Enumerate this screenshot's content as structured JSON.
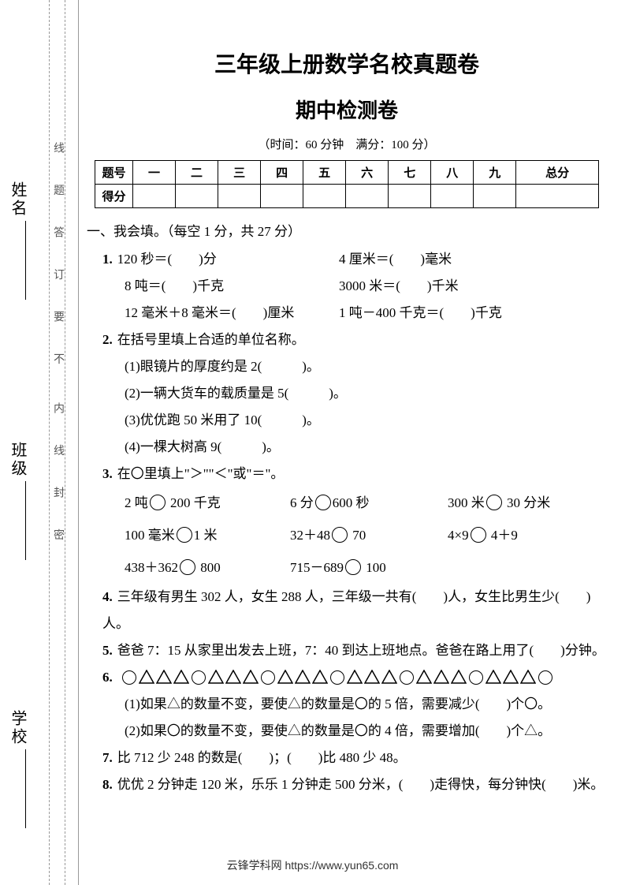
{
  "binding": {
    "labels": {
      "name": "姓名",
      "class": "班级",
      "school": "学校"
    },
    "note_top": "线 题 答 订 要 不",
    "note_bot": "内 线 封 密"
  },
  "title1": "三年级上册数学名校真题卷",
  "title2": "期中检测卷",
  "meta": "（时间：60 分钟　满分：100 分）",
  "score_table": {
    "headers": [
      "题号",
      "一",
      "二",
      "三",
      "四",
      "五",
      "六",
      "七",
      "八",
      "九",
      "总分"
    ],
    "row2_label": "得分"
  },
  "section1": "一、我会填。（每空 1 分，共 27 分）",
  "q1": {
    "n": "1.",
    "a1": "120 秒＝(　　)分",
    "a2": "4 厘米＝(　　)毫米",
    "b1": "8 吨＝(　　)千克",
    "b2": "3000 米＝(　　)千米",
    "c1": "12 毫米＋8 毫米＝(　　)厘米",
    "c2": "1 吨－400 千克＝(　　)千克"
  },
  "q2": {
    "n": "2.",
    "title": "在括号里填上合适的单位名称。",
    "s1": "(1)眼镜片的厚度约是 2(　　　)。",
    "s2": "(2)一辆大货车的载质量是 5(　　　)。",
    "s3": "(3)优优跑 50 米用了 10(　　　)。",
    "s4": "(4)一棵大树高 9(　　　)。"
  },
  "q3": {
    "n": "3.",
    "title": "在〇里填上\"＞\"\"＜\"或\"＝\"。",
    "r1a_pre": "2 吨",
    "r1a_post": " 200 千克",
    "r1b_pre": "6 分",
    "r1b_post": "600 秒",
    "r1c_pre": "300 米",
    "r1c_post": " 30 分米",
    "r2a_pre": "100 毫米",
    "r2a_post": "1 米",
    "r2b_pre": "32＋48",
    "r2b_post": " 70",
    "r2c_pre": "4×9",
    "r2c_post": " 4＋9",
    "r3a_pre": "438＋362",
    "r3a_post": " 800",
    "r3b_pre": "715－689",
    "r3b_post": " 100"
  },
  "q4": {
    "n": "4.",
    "text": "三年级有男生 302 人，女生 288 人，三年级一共有(　　)人，女生比男生少(　　)人。"
  },
  "q5": {
    "n": "5.",
    "text": "爸爸 7：15 从家里出发去上班，7：40 到达上班地点。爸爸在路上用了(　　)分钟。"
  },
  "q6": {
    "n": "6.",
    "s1": "(1)如果△的数量不变，要使△的数量是〇的 5 倍，需要减少(　　)个〇。",
    "s2": "(2)如果〇的数量不变，要使△的数量是〇的 4 倍，需要增加(　　)个△。"
  },
  "q7": {
    "n": "7.",
    "text": "比 712 少 248 的数是(　　)；(　　)比 480 少 48。"
  },
  "q8": {
    "n": "8.",
    "text": "优优 2 分钟走 120 米，乐乐 1 分钟走 500 分米，(　　)走得快，每分钟快(　　)米。"
  },
  "footer": "云锋学科网 https://www.yun65.com"
}
